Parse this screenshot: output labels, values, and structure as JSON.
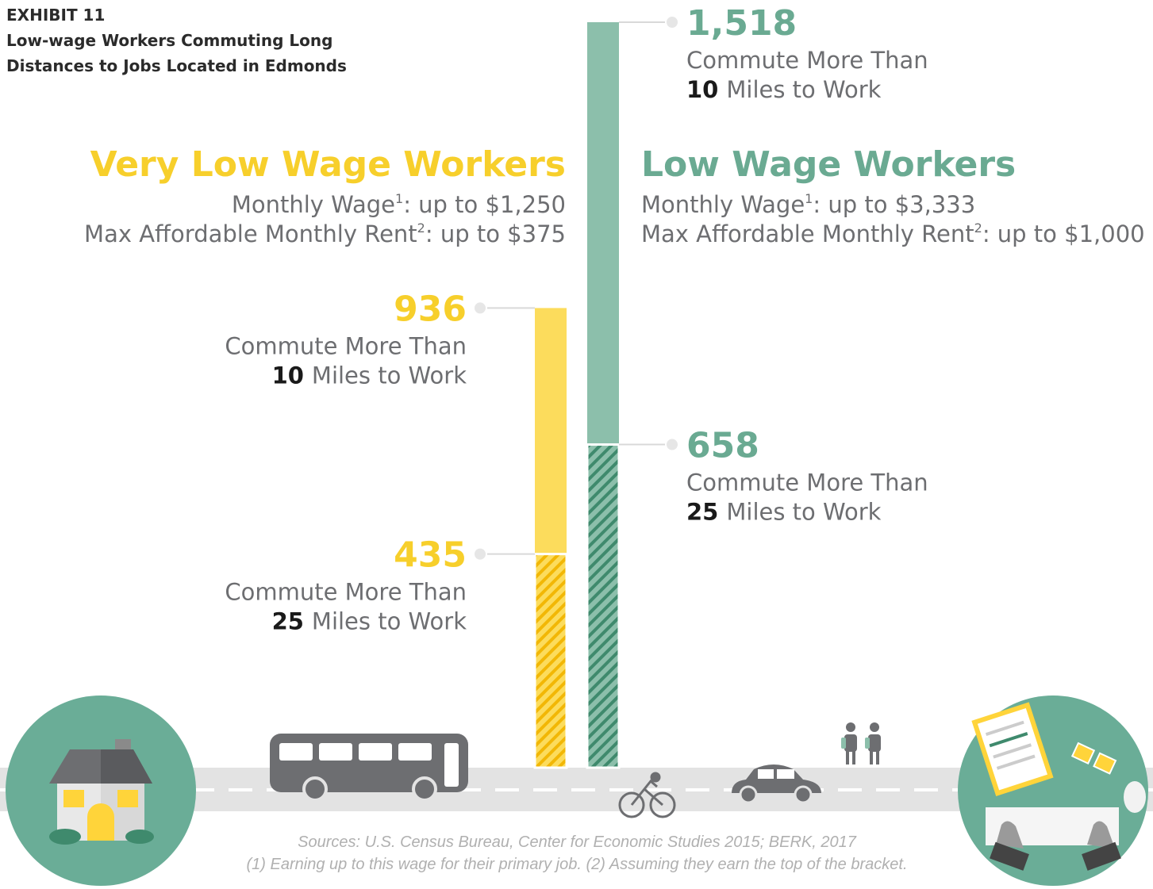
{
  "chart_data": {
    "type": "bar",
    "title": "EXHIBIT 11",
    "subtitle": [
      "Low-wage Workers Commuting Long",
      "Distances to Jobs Located in Edmonds"
    ],
    "caption": "Commute More Than",
    "caption_unit": "Miles to Work",
    "categories": [
      "10",
      "25"
    ],
    "series": [
      {
        "name": "Very Low Wage Workers",
        "color": "#fcdc5c",
        "hatch_color": "#f2b705",
        "label_color": "#f7cf2b",
        "values": [
          936,
          435
        ],
        "wage_label": "Monthly Wage",
        "wage_note": "1",
        "wage_text": ": up to $1,250",
        "rent_label": "Max Affordable Monthly Rent",
        "rent_note": "2",
        "rent_text": ": up to $375"
      },
      {
        "name": "Low Wage Workers",
        "color": "#8cbfab",
        "hatch_color": "#3f8a6d",
        "label_color": "#6aaa92",
        "values": [
          1518,
          658
        ],
        "value_labels": [
          "1,518",
          "658"
        ],
        "wage_label": "Monthly Wage",
        "wage_note": "1",
        "wage_text": ": up to $3,333",
        "rent_label": "Max Affordable Monthly Rent",
        "rent_note": "2",
        "rent_text": ": up to $1,000"
      }
    ],
    "sources": "Sources: U.S. Census Bureau, Center for Economic Studies 2015; BERK, 2017",
    "notes": "(1) Earning up to this wage for their primary job. (2) Assuming they earn the top of the bracket."
  }
}
